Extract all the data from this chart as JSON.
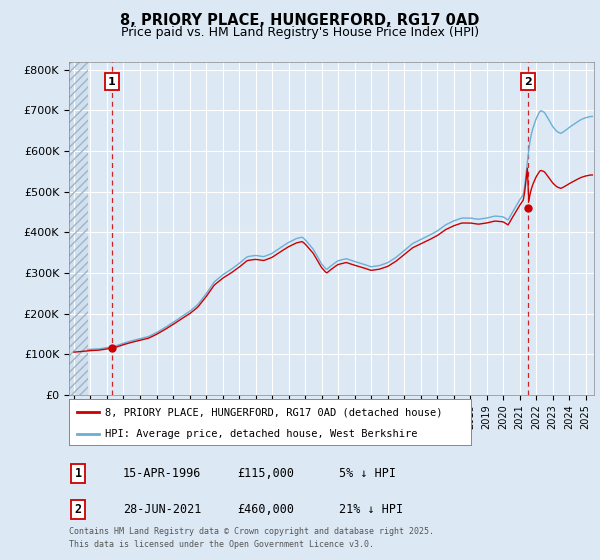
{
  "title": "8, PRIORY PLACE, HUNGERFORD, RG17 0AD",
  "subtitle": "Price paid vs. HM Land Registry's House Price Index (HPI)",
  "ylim": [
    0,
    820000
  ],
  "yticks": [
    0,
    100000,
    200000,
    300000,
    400000,
    500000,
    600000,
    700000,
    800000
  ],
  "ytick_labels": [
    "£0",
    "£100K",
    "£200K",
    "£300K",
    "£400K",
    "£500K",
    "£600K",
    "£700K",
    "£800K"
  ],
  "xlim_start": 1993.7,
  "xlim_end": 2025.5,
  "background_color": "#dce9f5",
  "plot_bg_color": "#dce9f5",
  "grid_color": "#ffffff",
  "hatch_color": "#b8c8d8",
  "sale1_year": 1996.29,
  "sale1_price": 115000,
  "sale2_year": 2021.49,
  "sale2_price": 460000,
  "legend_line1": "8, PRIORY PLACE, HUNGERFORD, RG17 0AD (detached house)",
  "legend_line2": "HPI: Average price, detached house, West Berkshire",
  "table_row1": [
    "1",
    "15-APR-1996",
    "£115,000",
    "5% ↓ HPI"
  ],
  "table_row2": [
    "2",
    "28-JUN-2021",
    "£460,000",
    "21% ↓ HPI"
  ],
  "footnote": "Contains HM Land Registry data © Crown copyright and database right 2025.\nThis data is licensed under the Open Government Licence v3.0.",
  "line_color_hpi": "#6baed6",
  "line_color_price": "#cc0000"
}
